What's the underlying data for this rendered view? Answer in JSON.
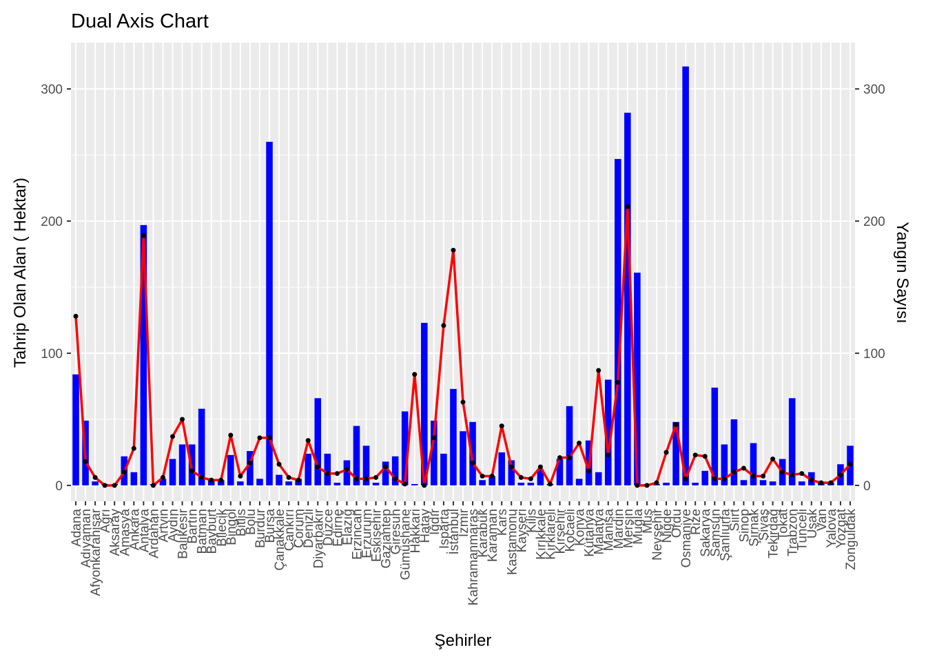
{
  "chart_data": {
    "type": "bar",
    "title": "Dual Axis Chart",
    "xlabel": "Şehirler",
    "ylabel": "Tahrip Olan Alan ( Hektar)",
    "y2label": "Yangın Sayısı",
    "ylim": [
      -12,
      335
    ],
    "y_ticks": [
      0,
      100,
      200,
      300
    ],
    "grid": true,
    "categories": [
      "Adana",
      "Adıyaman",
      "Afyonkarahisar",
      "Ağrı",
      "Aksaray",
      "Amasya",
      "Ankara",
      "Antalya",
      "Ardahan",
      "Artvin",
      "Aydın",
      "Balıkesir",
      "Bartın",
      "Batman",
      "Bayburt",
      "Bilecik",
      "Bingöl",
      "Bitlis",
      "Bolu",
      "Burdur",
      "Bursa",
      "Çanakkale",
      "Çankırı",
      "Çorum",
      "Denizli",
      "Diyarbakır",
      "Düzce",
      "Edirne",
      "Elazığ",
      "Erzincan",
      "Erzurum",
      "Eskişehir",
      "Gaziantep",
      "Giresun",
      "Gümüşhane",
      "Hakkari",
      "Hatay",
      "Iğdır",
      "Isparta",
      "İstanbul",
      "İzmir",
      "Kahramanmaraş",
      "Karabük",
      "Karaman",
      "Kars",
      "Kastamonu",
      "Kayseri",
      "Kilis",
      "Kırıkkale",
      "Kırklareli",
      "Kırşehir",
      "Kocaeli",
      "Konya",
      "Kütahya",
      "Malatya",
      "Manisa",
      "Mardin",
      "Mersin",
      "Muğla",
      "Muş",
      "Nevşehir",
      "Niğde",
      "Ordu",
      "Osmaniye",
      "Rize",
      "Sakarya",
      "Samsun",
      "Şanlıurfa",
      "Siirt",
      "Sinop",
      "Şırnak",
      "Sivas",
      "Tekirdağ",
      "Tokat",
      "Trabzon",
      "Tunceli",
      "Uşak",
      "Van",
      "Yalova",
      "Yozgat",
      "Zonguldak"
    ],
    "series": [
      {
        "name": "Tahrip Olan Alan ( Hektar)",
        "type": "bar",
        "color": "#0000ff",
        "values": [
          84,
          49,
          3,
          1,
          1,
          22,
          10,
          197,
          1,
          5,
          20,
          31,
          31,
          58,
          4,
          4,
          23,
          3,
          26,
          5,
          260,
          8,
          3,
          5,
          24,
          66,
          24,
          2,
          19,
          45,
          30,
          2,
          18,
          22,
          56,
          1,
          123,
          49,
          24,
          73,
          41,
          48,
          4,
          7,
          25,
          19,
          2,
          2,
          12,
          1,
          20,
          60,
          5,
          34,
          10,
          80,
          247,
          282,
          161,
          1,
          1,
          2,
          48,
          317,
          2,
          11,
          74,
          31,
          50,
          4,
          32,
          4,
          3,
          20,
          66,
          3,
          10,
          2,
          2,
          16,
          30
        ]
      },
      {
        "name": "Yangın Sayısı",
        "type": "line",
        "color": "#ff0000",
        "point_color": "#000000",
        "values": [
          128,
          18,
          6,
          0,
          0,
          10,
          28,
          189,
          0,
          6,
          37,
          50,
          11,
          6,
          4,
          4,
          38,
          7,
          17,
          36,
          36,
          16,
          6,
          4,
          34,
          14,
          9,
          9,
          12,
          5,
          5,
          6,
          14,
          5,
          1,
          84,
          0,
          36,
          121,
          178,
          63,
          17,
          7,
          7,
          45,
          14,
          6,
          5,
          14,
          1,
          21,
          21,
          32,
          11,
          87,
          23,
          78,
          211,
          0,
          0,
          2,
          25,
          46,
          5,
          23,
          22,
          5,
          5,
          10,
          13,
          7,
          7,
          20,
          10,
          8,
          9,
          4,
          2,
          2,
          8,
          16
        ]
      }
    ]
  }
}
